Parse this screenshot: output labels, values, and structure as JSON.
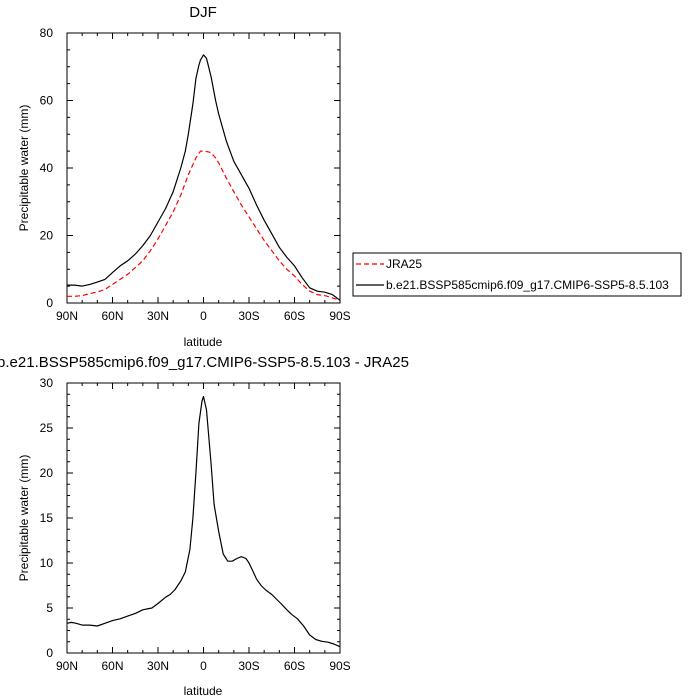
{
  "chart_data": [
    {
      "type": "line",
      "title": "DJF",
      "xlabel": "latitude",
      "ylabel": "Precipitable water (mm)",
      "xlim": [
        90,
        -90
      ],
      "ylim": [
        0,
        80
      ],
      "x_ticks": [
        {
          "value": 90,
          "label": "90N"
        },
        {
          "value": 60,
          "label": "60N"
        },
        {
          "value": 30,
          "label": "30N"
        },
        {
          "value": 0,
          "label": "0"
        },
        {
          "value": -30,
          "label": "30S"
        },
        {
          "value": -60,
          "label": "60S"
        },
        {
          "value": -90,
          "label": "90S"
        }
      ],
      "y_ticks": [
        0,
        20,
        40,
        60,
        80
      ],
      "grid": false,
      "legend_position": "right",
      "series": [
        {
          "name": "JRA25",
          "color": "#ff0000",
          "dashed": true,
          "x": [
            90,
            85,
            80,
            75,
            70,
            65,
            60,
            55,
            50,
            45,
            40,
            35,
            30,
            25,
            20,
            15,
            10,
            5,
            2,
            0,
            -3,
            -5,
            -8,
            -10,
            -15,
            -20,
            -25,
            -30,
            -35,
            -40,
            -45,
            -50,
            -55,
            -60,
            -65,
            -70,
            -75,
            -80,
            -85,
            -90
          ],
          "y": [
            2.0,
            2.0,
            2.2,
            2.8,
            3.3,
            4.0,
            5.5,
            7.0,
            8.5,
            10.5,
            12.5,
            15.5,
            19.0,
            23.0,
            27.0,
            32.0,
            38.0,
            43.0,
            45.0,
            45.0,
            44.8,
            44.5,
            43.0,
            41.5,
            37.0,
            33.0,
            29.0,
            25.5,
            22.0,
            18.5,
            15.5,
            12.5,
            10.0,
            8.0,
            5.5,
            3.5,
            2.5,
            2.2,
            1.5,
            0.8
          ]
        },
        {
          "name": "b.e21.BSSP585cmip6.f09_g17.CMIP6-SSP5-8.5.103",
          "color": "#000000",
          "dashed": false,
          "x": [
            90,
            85,
            80,
            75,
            70,
            65,
            60,
            55,
            50,
            45,
            40,
            35,
            30,
            25,
            20,
            15,
            12,
            10,
            7,
            5,
            3,
            2,
            0,
            -2,
            -5,
            -8,
            -10,
            -15,
            -20,
            -25,
            -30,
            -35,
            -40,
            -45,
            -50,
            -55,
            -60,
            -65,
            -70,
            -75,
            -80,
            -85,
            -90
          ],
          "y": [
            5.3,
            5.3,
            5.0,
            5.5,
            6.2,
            7.0,
            9.0,
            11.0,
            12.5,
            14.5,
            17.0,
            20.0,
            24.0,
            28.0,
            33.0,
            40.0,
            45.0,
            50.0,
            59.0,
            66.5,
            70.5,
            72.0,
            73.5,
            72.5,
            67.0,
            60.0,
            56.0,
            48.0,
            42.0,
            38.0,
            34.0,
            29.0,
            24.5,
            20.5,
            16.5,
            13.5,
            11.0,
            7.5,
            4.5,
            3.5,
            3.2,
            2.5,
            0.8
          ]
        }
      ]
    },
    {
      "type": "line",
      "title": "b.e21.BSSP585cmip6.f09_g17.CMIP6-SSP5-8.5.103 - JRA25",
      "xlabel": "latitude",
      "ylabel": "Precipitable water (mm)",
      "xlim": [
        90,
        -90
      ],
      "ylim": [
        0,
        30
      ],
      "x_ticks": [
        {
          "value": 90,
          "label": "90N"
        },
        {
          "value": 60,
          "label": "60N"
        },
        {
          "value": 30,
          "label": "30N"
        },
        {
          "value": 0,
          "label": "0"
        },
        {
          "value": -30,
          "label": "30S"
        },
        {
          "value": -60,
          "label": "60S"
        },
        {
          "value": -90,
          "label": "90S"
        }
      ],
      "y_ticks": [
        0,
        5,
        10,
        15,
        20,
        25,
        30
      ],
      "grid": false,
      "series": [
        {
          "color": "#000000",
          "dashed": false,
          "x": [
            90,
            87,
            84,
            80,
            75,
            70,
            65,
            60,
            55,
            50,
            45,
            40,
            37,
            34,
            30,
            25,
            22,
            19,
            15,
            12,
            9,
            7,
            5,
            3,
            1,
            0,
            -2,
            -5,
            -7,
            -10,
            -13,
            -16,
            -19,
            -22,
            -25,
            -28,
            -30,
            -32,
            -35,
            -38,
            -41,
            -45,
            -48,
            -51,
            -55,
            -58,
            -62,
            -66,
            -70,
            -74,
            -78,
            -82,
            -86,
            -90
          ],
          "y": [
            3.3,
            3.4,
            3.3,
            3.1,
            3.1,
            3.0,
            3.3,
            3.6,
            3.8,
            4.1,
            4.4,
            4.8,
            4.9,
            5.0,
            5.5,
            6.2,
            6.5,
            7.0,
            8.0,
            9.0,
            11.5,
            15.0,
            20.0,
            25.5,
            28.0,
            28.5,
            27.0,
            21.0,
            16.5,
            13.5,
            11.0,
            10.2,
            10.2,
            10.5,
            10.7,
            10.5,
            10.0,
            9.3,
            8.2,
            7.5,
            7.0,
            6.5,
            6.0,
            5.5,
            4.8,
            4.3,
            3.8,
            3.0,
            2.0,
            1.5,
            1.3,
            1.2,
            1.0,
            0.7
          ]
        }
      ]
    }
  ]
}
